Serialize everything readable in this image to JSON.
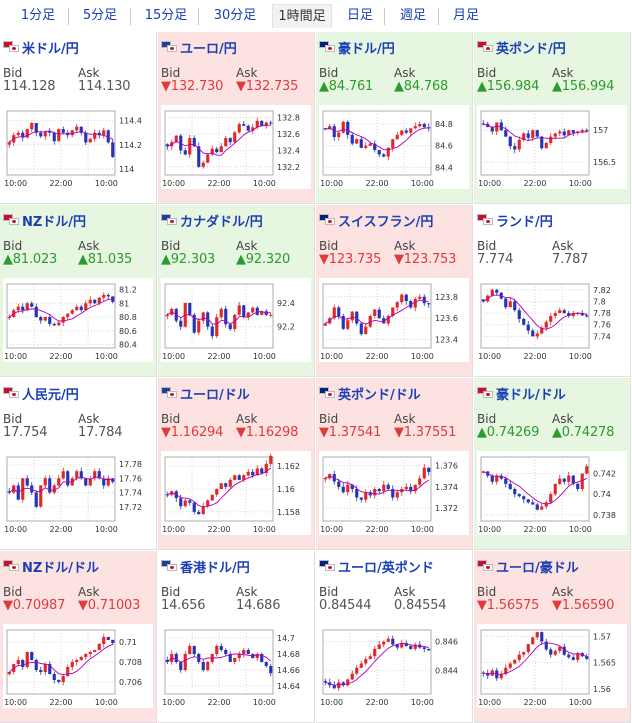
{
  "tabs": [
    "1分足",
    "5分足",
    "15分足",
    "30分足",
    "1時間足",
    "日足",
    "週足",
    "月足"
  ],
  "active_tab": 4,
  "colors": {
    "link": "#1a3fb5",
    "up": "#2d9a2d",
    "down": "#e03b3b",
    "cell_up_bg": "#e6f6e0",
    "cell_down_bg": "#fde2e2",
    "candle_up": "#e02828",
    "candle_down": "#2434b8",
    "moving_average": "#b000b0"
  },
  "labels": {
    "bid": "Bid",
    "ask": "Ask"
  },
  "time_labels": [
    "10:00",
    "22:00",
    "10:00"
  ],
  "pairs": [
    {
      "name": "米ドル/円",
      "dir": "flat",
      "bid": "114.128",
      "ask": "114.130",
      "y_ticks": [
        "114.4",
        "114.2",
        "114"
      ],
      "y_range": [
        113.95,
        114.48
      ],
      "trend": [
        114.22,
        114.28,
        114.3,
        114.26,
        114.33,
        114.38,
        114.3,
        114.27,
        114.31,
        114.3,
        114.23,
        114.33,
        114.3,
        114.28,
        114.32,
        114.35,
        114.3,
        114.22,
        114.25,
        114.3,
        114.28,
        114.32,
        114.22,
        114.1
      ]
    },
    {
      "name": "ユーロ/円",
      "dir": "down",
      "bid": "▼132.730",
      "ask": "▼132.735",
      "y_ticks": [
        "132.8",
        "132.6",
        "132.4",
        "132.2"
      ],
      "y_range": [
        132.1,
        132.88
      ],
      "trend": [
        132.45,
        132.5,
        132.58,
        132.4,
        132.35,
        132.55,
        132.45,
        132.2,
        132.25,
        132.35,
        132.42,
        132.38,
        132.45,
        132.55,
        132.5,
        132.62,
        132.72,
        132.7,
        132.64,
        132.68,
        132.76,
        132.7,
        132.74,
        132.73
      ]
    },
    {
      "name": "豪ドル/円",
      "dir": "up",
      "bid": "▲84.761",
      "ask": "▲84.768",
      "y_ticks": [
        "84.8",
        "84.6",
        "84.4"
      ],
      "y_range": [
        84.33,
        84.92
      ],
      "trend": [
        84.75,
        84.78,
        84.68,
        84.72,
        84.82,
        84.7,
        84.62,
        84.66,
        84.58,
        84.6,
        84.62,
        84.56,
        84.52,
        84.5,
        84.58,
        84.66,
        84.7,
        84.74,
        84.72,
        84.76,
        84.78,
        84.8,
        84.77,
        84.76
      ]
    },
    {
      "name": "英ポンド/円",
      "dir": "up",
      "bid": "▲156.984",
      "ask": "▲156.994",
      "y_ticks": [
        "157",
        "156.5"
      ],
      "y_range": [
        156.3,
        157.3
      ],
      "trend": [
        157.1,
        157.05,
        156.98,
        157.12,
        157.0,
        156.9,
        156.75,
        156.7,
        156.85,
        156.95,
        156.88,
        157.0,
        156.9,
        156.72,
        156.8,
        156.9,
        156.95,
        156.98,
        156.92,
        157.0,
        156.96,
        156.98,
        157.0,
        156.98
      ]
    },
    {
      "name": "NZドル/円",
      "dir": "up",
      "bid": "▲81.023",
      "ask": "▲81.035",
      "y_ticks": [
        "81.2",
        "81",
        "80.8",
        "80.6",
        "80.4"
      ],
      "y_range": [
        80.35,
        81.28
      ],
      "trend": [
        80.8,
        80.9,
        80.95,
        80.9,
        81.0,
        80.95,
        80.8,
        80.75,
        80.8,
        80.7,
        80.68,
        80.72,
        80.8,
        80.85,
        80.9,
        80.95,
        80.9,
        81.0,
        81.05,
        81.0,
        81.08,
        81.12,
        81.1,
        81.02
      ]
    },
    {
      "name": "カナダドル/円",
      "dir": "up",
      "bid": "▲92.303",
      "ask": "▲92.320",
      "y_ticks": [
        "92.4",
        "92.2"
      ],
      "y_range": [
        92.02,
        92.56
      ],
      "trend": [
        92.3,
        92.35,
        92.25,
        92.2,
        92.4,
        92.3,
        92.15,
        92.25,
        92.32,
        92.2,
        92.12,
        92.28,
        92.35,
        92.22,
        92.18,
        92.3,
        92.38,
        92.28,
        92.32,
        92.36,
        92.3,
        92.33,
        92.3,
        92.3
      ]
    },
    {
      "name": "スイスフラン/円",
      "dir": "down",
      "bid": "▼123.735",
      "ask": "▼123.753",
      "y_ticks": [
        "123.8",
        "123.6",
        "123.4"
      ],
      "y_range": [
        123.32,
        123.92
      ],
      "trend": [
        123.55,
        123.6,
        123.7,
        123.62,
        123.5,
        123.58,
        123.66,
        123.55,
        123.45,
        123.52,
        123.62,
        123.68,
        123.6,
        123.55,
        123.62,
        123.7,
        123.75,
        123.82,
        123.76,
        123.7,
        123.78,
        123.8,
        123.74,
        123.73
      ]
    },
    {
      "name": "ランド/円",
      "dir": "flat",
      "bid": "7.774",
      "ask": "7.787",
      "y_ticks": [
        "7.82",
        "7.8",
        "7.78",
        "7.76",
        "7.74"
      ],
      "y_range": [
        7.72,
        7.83
      ],
      "trend": [
        7.8,
        7.81,
        7.82,
        7.815,
        7.805,
        7.79,
        7.8,
        7.785,
        7.77,
        7.76,
        7.75,
        7.74,
        7.745,
        7.755,
        7.765,
        7.775,
        7.78,
        7.785,
        7.78,
        7.775,
        7.78,
        7.78,
        7.776,
        7.774
      ]
    },
    {
      "name": "人民元/円",
      "dir": "flat",
      "bid": "17.754",
      "ask": "17.784",
      "y_ticks": [
        "17.78",
        "17.76",
        "17.74",
        "17.72"
      ],
      "y_range": [
        17.7,
        17.79
      ],
      "trend": [
        17.74,
        17.75,
        17.73,
        17.76,
        17.75,
        17.74,
        17.72,
        17.75,
        17.76,
        17.74,
        17.75,
        17.76,
        17.77,
        17.75,
        17.76,
        17.77,
        17.76,
        17.75,
        17.76,
        17.77,
        17.76,
        17.75,
        17.76,
        17.755
      ]
    },
    {
      "name": "ユーロ/ドル",
      "dir": "down",
      "bid": "▼1.16294",
      "ask": "▼1.16298",
      "y_ticks": [
        "1.162",
        "1.16",
        "1.158"
      ],
      "y_range": [
        1.1572,
        1.1628
      ],
      "trend": [
        1.1595,
        1.1598,
        1.1592,
        1.1585,
        1.159,
        1.1588,
        1.158,
        1.1578,
        1.1585,
        1.159,
        1.1595,
        1.16,
        1.1605,
        1.1602,
        1.1608,
        1.1612,
        1.1608,
        1.1612,
        1.1615,
        1.1612,
        1.1618,
        1.1614,
        1.1622,
        1.1629
      ]
    },
    {
      "name": "英ポンド/ドル",
      "dir": "down",
      "bid": "▼1.37541",
      "ask": "▼1.37551",
      "y_ticks": [
        "1.376",
        "1.374",
        "1.372"
      ],
      "y_range": [
        1.3708,
        1.3768
      ],
      "trend": [
        1.3748,
        1.3752,
        1.3745,
        1.374,
        1.3735,
        1.3742,
        1.3738,
        1.373,
        1.3728,
        1.3735,
        1.3732,
        1.3738,
        1.3736,
        1.3742,
        1.3738,
        1.373,
        1.3735,
        1.3738,
        1.374,
        1.3736,
        1.3742,
        1.3748,
        1.3758,
        1.3754
      ]
    },
    {
      "name": "豪ドル/ドル",
      "dir": "up",
      "bid": "▲0.74269",
      "ask": "▲0.74278",
      "y_ticks": [
        "0.742",
        "0.74",
        "0.738"
      ],
      "y_range": [
        0.7374,
        0.7436
      ],
      "trend": [
        0.7422,
        0.7418,
        0.7412,
        0.7418,
        0.7415,
        0.741,
        0.7405,
        0.74,
        0.7398,
        0.7395,
        0.7392,
        0.739,
        0.7385,
        0.7388,
        0.7392,
        0.74,
        0.741,
        0.7415,
        0.7412,
        0.7418,
        0.741,
        0.7405,
        0.742,
        0.7427
      ]
    },
    {
      "name": "NZドル/ドル",
      "dir": "down",
      "bid": "▼0.70987",
      "ask": "▼0.71003",
      "y_ticks": [
        "0.71",
        "0.708",
        "0.706"
      ],
      "y_range": [
        0.7048,
        0.7112
      ],
      "trend": [
        0.707,
        0.7078,
        0.7082,
        0.7075,
        0.709,
        0.7082,
        0.7072,
        0.707,
        0.7078,
        0.7068,
        0.7062,
        0.706,
        0.7066,
        0.7075,
        0.708,
        0.7082,
        0.7085,
        0.7088,
        0.709,
        0.7092,
        0.7098,
        0.7105,
        0.7102,
        0.7099
      ]
    },
    {
      "name": "香港ドル/円",
      "dir": "flat",
      "bid": "14.656",
      "ask": "14.686",
      "y_ticks": [
        "14.7",
        "14.68",
        "14.66",
        "14.64"
      ],
      "y_range": [
        14.63,
        14.71
      ],
      "trend": [
        14.67,
        14.68,
        14.67,
        14.66,
        14.68,
        14.69,
        14.68,
        14.67,
        14.66,
        14.67,
        14.68,
        14.69,
        14.685,
        14.68,
        14.67,
        14.675,
        14.68,
        14.685,
        14.68,
        14.675,
        14.68,
        14.67,
        14.665,
        14.656
      ]
    },
    {
      "name": "ユーロ/英ポンド",
      "dir": "flat",
      "bid": "0.84544",
      "ask": "0.84554",
      "y_ticks": [
        "0.846",
        "0.844"
      ],
      "y_range": [
        0.8424,
        0.8468
      ],
      "trend": [
        0.8432,
        0.843,
        0.8428,
        0.8432,
        0.843,
        0.8434,
        0.8438,
        0.8442,
        0.8445,
        0.8448,
        0.845,
        0.8455,
        0.8458,
        0.846,
        0.8462,
        0.8458,
        0.8456,
        0.8459,
        0.8457,
        0.8455,
        0.8458,
        0.8456,
        0.8455,
        0.8454
      ]
    },
    {
      "name": "ユーロ/豪ドル",
      "dir": "down",
      "bid": "▼1.56575",
      "ask": "▼1.56590",
      "y_ticks": [
        "1.57",
        "1.565",
        "1.56"
      ],
      "y_range": [
        1.559,
        1.5712
      ],
      "trend": [
        1.563,
        1.5625,
        1.5635,
        1.562,
        1.5628,
        1.564,
        1.5648,
        1.5655,
        1.5665,
        1.567,
        1.5685,
        1.5698,
        1.5708,
        1.569,
        1.5675,
        1.5665,
        1.5672,
        1.568,
        1.5665,
        1.566,
        1.5655,
        1.5668,
        1.5662,
        1.5657
      ]
    }
  ]
}
